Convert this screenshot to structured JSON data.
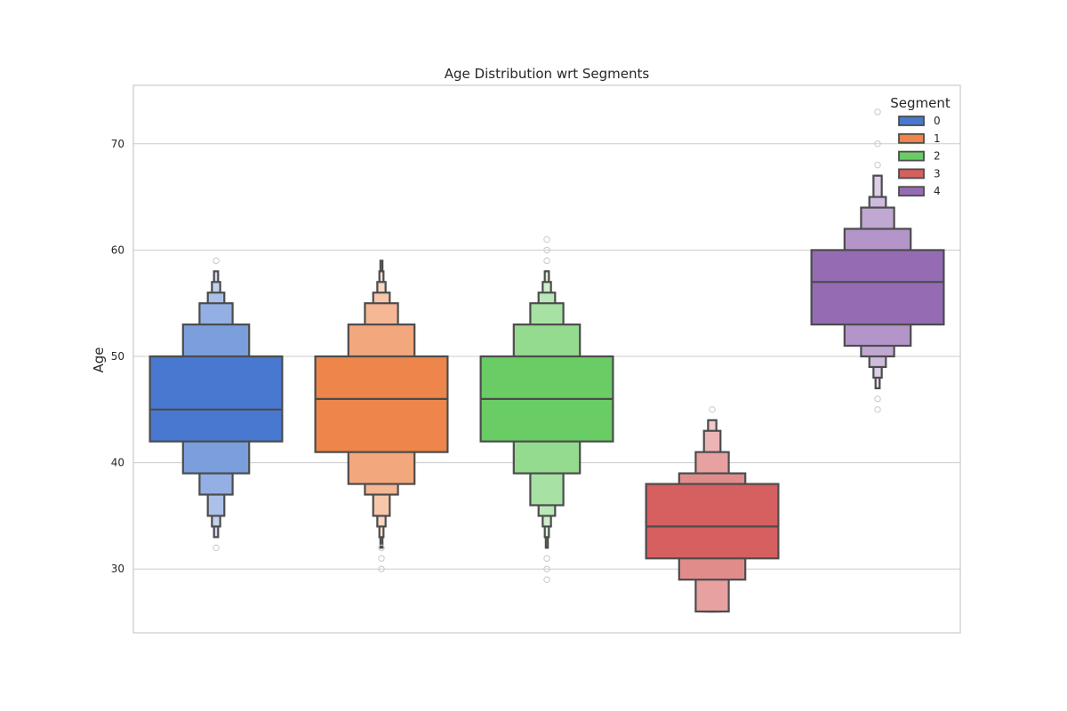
{
  "chart_data": {
    "type": "boxen",
    "title": "Age Distribution wrt Segments",
    "xlabel": "",
    "ylabel": "Age",
    "ylim": [
      24,
      75.5
    ],
    "yticks": [
      30,
      40,
      50,
      60,
      70
    ],
    "grid": true,
    "legend": {
      "title": "Segment",
      "placement": "top-right",
      "entries": [
        "0",
        "1",
        "2",
        "3",
        "4"
      ]
    },
    "series": [
      {
        "name": "0",
        "color": "#4878d0",
        "median": 45,
        "boxes": [
          [
            42,
            50
          ],
          [
            39,
            53
          ],
          [
            37,
            55
          ],
          [
            35,
            56
          ],
          [
            34,
            57
          ],
          [
            33,
            58
          ]
        ],
        "outliers": [
          32,
          59
        ]
      },
      {
        "name": "1",
        "color": "#ee854a",
        "median": 46,
        "boxes": [
          [
            41,
            50
          ],
          [
            38,
            53
          ],
          [
            37,
            55
          ],
          [
            35,
            56
          ],
          [
            34,
            57
          ],
          [
            33,
            58
          ],
          [
            32,
            59
          ]
        ],
        "outliers": [
          32,
          31,
          30
        ]
      },
      {
        "name": "2",
        "color": "#6acc64",
        "median": 46,
        "boxes": [
          [
            42,
            50
          ],
          [
            39,
            53
          ],
          [
            36,
            55
          ],
          [
            35,
            56
          ],
          [
            34,
            57
          ],
          [
            33,
            58
          ],
          [
            32,
            58
          ]
        ],
        "outliers": [
          59,
          60,
          61,
          31,
          30,
          29
        ]
      },
      {
        "name": "3",
        "color": "#d65f5f",
        "median": 34,
        "boxes": [
          [
            31,
            38
          ],
          [
            29,
            39
          ],
          [
            26,
            41
          ],
          [
            26,
            43
          ],
          [
            26,
            44
          ]
        ],
        "outliers": [
          45
        ]
      },
      {
        "name": "4",
        "color": "#956cb4",
        "median": 57,
        "boxes": [
          [
            53,
            60
          ],
          [
            51,
            62
          ],
          [
            50,
            64
          ],
          [
            49,
            65
          ],
          [
            48,
            67
          ],
          [
            47,
            67
          ]
        ],
        "outliers": [
          46,
          45,
          68,
          70,
          73
        ]
      }
    ]
  }
}
